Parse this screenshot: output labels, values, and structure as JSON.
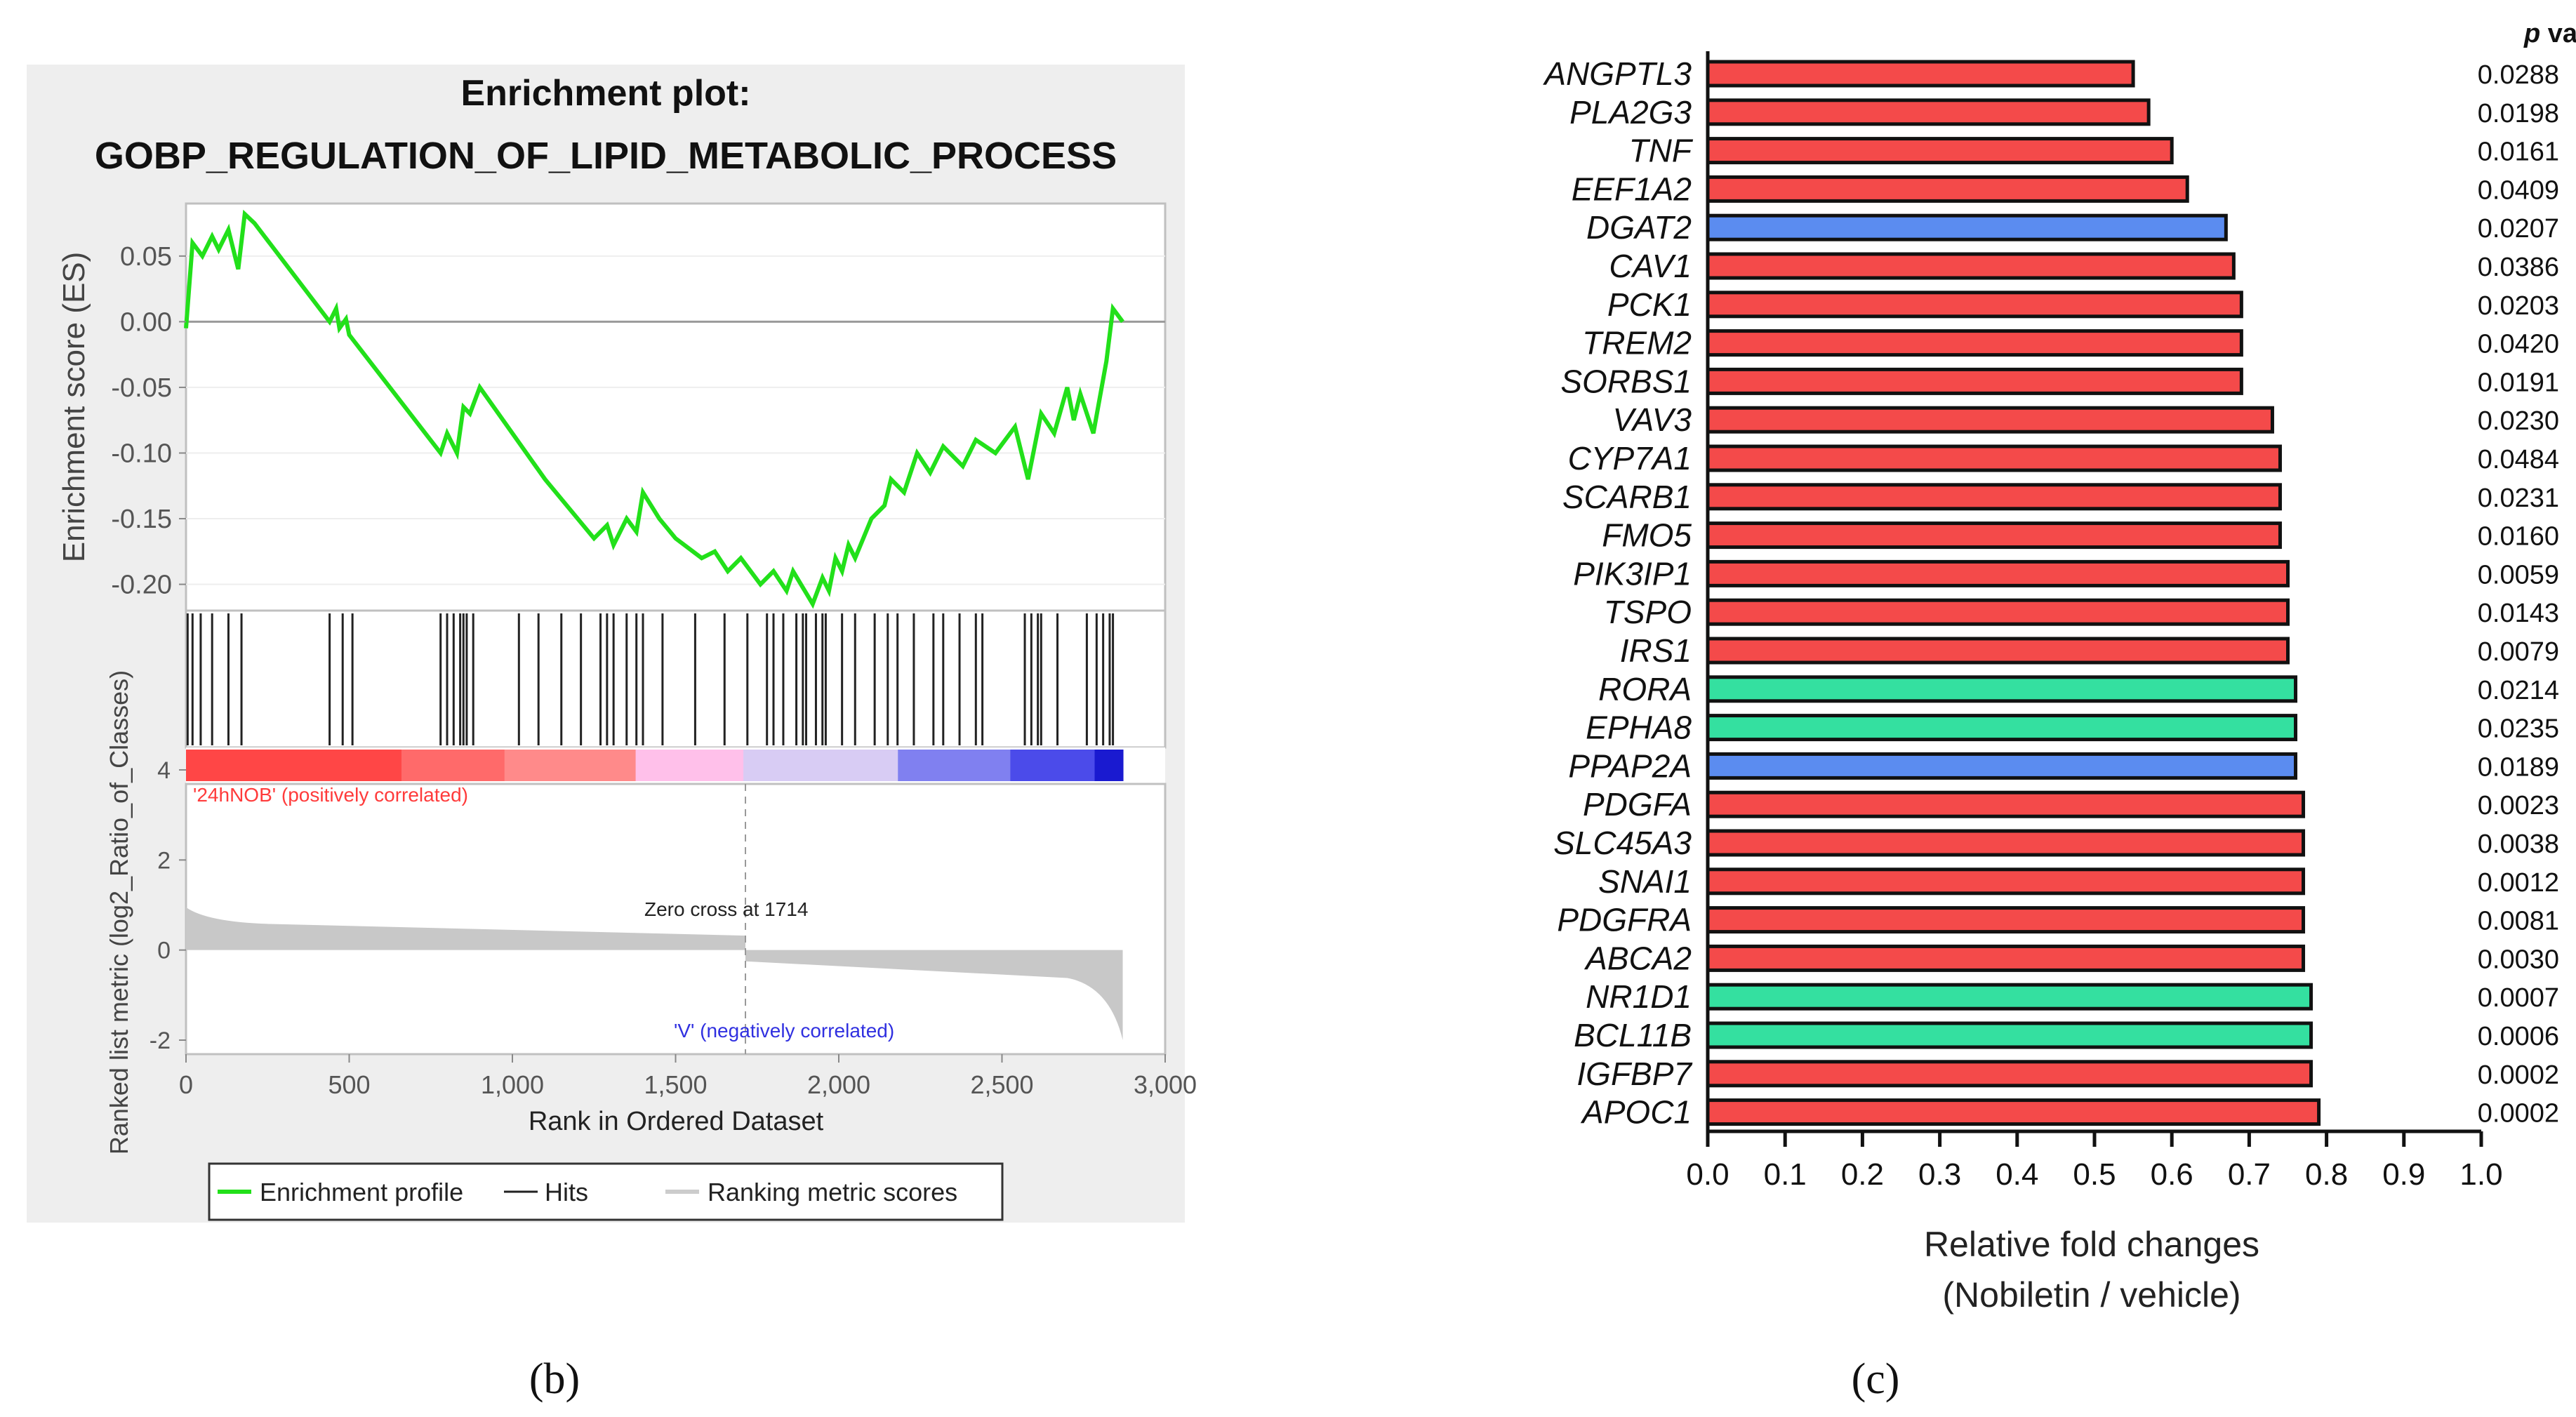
{
  "panel_b": {
    "label": "(b)",
    "title_line1": "Enrichment plot:",
    "title_line2": "GOBP_REGULATION_OF_LIPID_METABOLIC_PROCESS",
    "zero_cross_text": "Zero cross at 1714",
    "pos_text": "'24hNOB' (positively correlated)",
    "neg_text": "'V' (negatively correlated)",
    "legend": {
      "profile": "Enrichment profile",
      "hits": "Hits",
      "ranking": "Ranking metric scores"
    },
    "colors": {
      "profile": "#22e01a",
      "hits": "#222222",
      "metric": "#c8c8c8",
      "pos": "#ff4a4a",
      "neg": "#2020d0"
    }
  },
  "panel_c": {
    "label": "(c)",
    "pvalue_header_p": "p",
    "pvalue_header_rest": " value",
    "colors": {
      "red": "#f44a4a",
      "blue": "#5b8cf0",
      "green": "#34e0a0"
    }
  },
  "chart_data": [
    {
      "type": "line",
      "title": "Enrichment plot: GOBP_REGULATION_OF_LIPID_METABOLIC_PROCESS",
      "xlabel": "Rank in Ordered Dataset",
      "ylabel": "Enrichment score (ES)",
      "xlim": [
        0,
        3000
      ],
      "ylim": [
        -0.22,
        0.09
      ],
      "x_ticks": [
        0,
        500,
        1000,
        1500,
        2000,
        2500,
        3000
      ],
      "x_tick_labels": [
        "0",
        "500",
        "1,000",
        "1,500",
        "2,000",
        "2,500",
        "3,000"
      ],
      "y_ticks": [
        0.05,
        0.0,
        -0.05,
        -0.1,
        -0.15,
        -0.2
      ],
      "y_tick_labels": [
        "0.05",
        "0.00",
        "-0.05",
        "-0.10",
        "-0.15",
        "-0.20"
      ],
      "series": [
        {
          "name": "Enrichment profile",
          "x": [
            0,
            20,
            50,
            80,
            100,
            130,
            160,
            180,
            210,
            440,
            460,
            470,
            490,
            500,
            780,
            800,
            830,
            850,
            870,
            900,
            1100,
            1200,
            1250,
            1290,
            1310,
            1350,
            1380,
            1400,
            1450,
            1500,
            1580,
            1620,
            1660,
            1700,
            1760,
            1800,
            1840,
            1860,
            1920,
            1950,
            1970,
            1990,
            2010,
            2030,
            2050,
            2100,
            2140,
            2160,
            2200,
            2240,
            2280,
            2320,
            2380,
            2420,
            2480,
            2540,
            2580,
            2620,
            2660,
            2700,
            2720,
            2740,
            2780,
            2820,
            2840,
            2870
          ],
          "y": [
            -0.005,
            0.06,
            0.05,
            0.065,
            0.055,
            0.07,
            0.04,
            0.082,
            0.075,
            0.0,
            0.01,
            -0.005,
            0.002,
            -0.01,
            -0.1,
            -0.085,
            -0.1,
            -0.065,
            -0.07,
            -0.05,
            -0.12,
            -0.15,
            -0.165,
            -0.155,
            -0.17,
            -0.15,
            -0.16,
            -0.13,
            -0.15,
            -0.165,
            -0.18,
            -0.175,
            -0.19,
            -0.18,
            -0.2,
            -0.19,
            -0.205,
            -0.19,
            -0.215,
            -0.195,
            -0.205,
            -0.18,
            -0.19,
            -0.17,
            -0.18,
            -0.15,
            -0.14,
            -0.12,
            -0.13,
            -0.1,
            -0.115,
            -0.095,
            -0.11,
            -0.09,
            -0.1,
            -0.08,
            -0.12,
            -0.07,
            -0.085,
            -0.05,
            -0.075,
            -0.055,
            -0.085,
            -0.03,
            0.01,
            0.0
          ]
        }
      ],
      "hits": [
        5,
        20,
        45,
        80,
        130,
        170,
        440,
        480,
        510,
        780,
        800,
        820,
        840,
        850,
        860,
        880,
        1020,
        1080,
        1150,
        1210,
        1270,
        1290,
        1310,
        1350,
        1380,
        1400,
        1460,
        1560,
        1650,
        1720,
        1780,
        1800,
        1830,
        1870,
        1890,
        1900,
        1930,
        1950,
        1960,
        2010,
        2050,
        2110,
        2150,
        2180,
        2230,
        2290,
        2320,
        2370,
        2420,
        2440,
        2570,
        2590,
        2610,
        2620,
        2670,
        2760,
        2790,
        2810,
        2830,
        2840
      ],
      "ranked_metric": {
        "ylabel": "Ranked list metric (log2_Ratio_of_Classes)",
        "ylim": [
          -2,
          4
        ],
        "y_ticks": [
          4,
          2,
          0,
          -2
        ],
        "y_tick_labels": [
          "4",
          "2",
          "0",
          "-2"
        ],
        "zero_cross": 1714
      },
      "legend": [
        "Enrichment profile",
        "Hits",
        "Ranking metric scores"
      ]
    },
    {
      "type": "bar",
      "orientation": "horizontal",
      "title": "",
      "xlabel": "Relative fold changes (Nobiletin / vehicle)",
      "xlim": [
        0.0,
        1.0
      ],
      "x_ticks": [
        0.0,
        0.1,
        0.2,
        0.3,
        0.4,
        0.5,
        0.6,
        0.7,
        0.8,
        0.9,
        1.0
      ],
      "x_tick_labels": [
        "0.0",
        "0.1",
        "0.2",
        "0.3",
        "0.4",
        "0.5",
        "0.6",
        "0.7",
        "0.8",
        "0.9",
        "1.0"
      ],
      "categories": [
        "ANGPTL3",
        "PLA2G3",
        "TNF",
        "EEF1A2",
        "DGAT2",
        "CAV1",
        "PCK1",
        "TREM2",
        "SORBS1",
        "VAV3",
        "CYP7A1",
        "SCARB1",
        "FMO5",
        "PIK3IP1",
        "TSPO",
        "IRS1",
        "RORA",
        "EPHA8",
        "PPAP2A",
        "PDGFA",
        "SLC45A3",
        "SNAI1",
        "PDGFRA",
        "ABCA2",
        "NR1D1",
        "BCL11B",
        "IGFBP7",
        "APOC1"
      ],
      "values": [
        0.55,
        0.57,
        0.6,
        0.62,
        0.67,
        0.68,
        0.69,
        0.69,
        0.69,
        0.73,
        0.74,
        0.74,
        0.74,
        0.75,
        0.75,
        0.75,
        0.76,
        0.76,
        0.76,
        0.77,
        0.77,
        0.77,
        0.77,
        0.77,
        0.78,
        0.78,
        0.78,
        0.79
      ],
      "bar_colors": [
        "red",
        "red",
        "red",
        "red",
        "blue",
        "red",
        "red",
        "red",
        "red",
        "red",
        "red",
        "red",
        "red",
        "red",
        "red",
        "red",
        "green",
        "green",
        "blue",
        "red",
        "red",
        "red",
        "red",
        "red",
        "green",
        "green",
        "red",
        "red"
      ],
      "p_values": [
        "0.0288",
        "0.0198",
        "0.0161",
        "0.0409",
        "0.0207",
        "0.0386",
        "0.0203",
        "0.0420",
        "0.0191",
        "0.0230",
        "0.0484",
        "0.0231",
        "0.0160",
        "0.0059",
        "0.0143",
        "0.0079",
        "0.0214",
        "0.0235",
        "0.0189",
        "0.0023",
        "0.0038",
        "0.0012",
        "0.0081",
        "0.0030",
        "0.0007",
        "0.0006",
        "0.0002",
        "0.0002"
      ],
      "xlabel_line1": "Relative fold changes",
      "xlabel_line2": "(Nobiletin / vehicle)"
    }
  ]
}
